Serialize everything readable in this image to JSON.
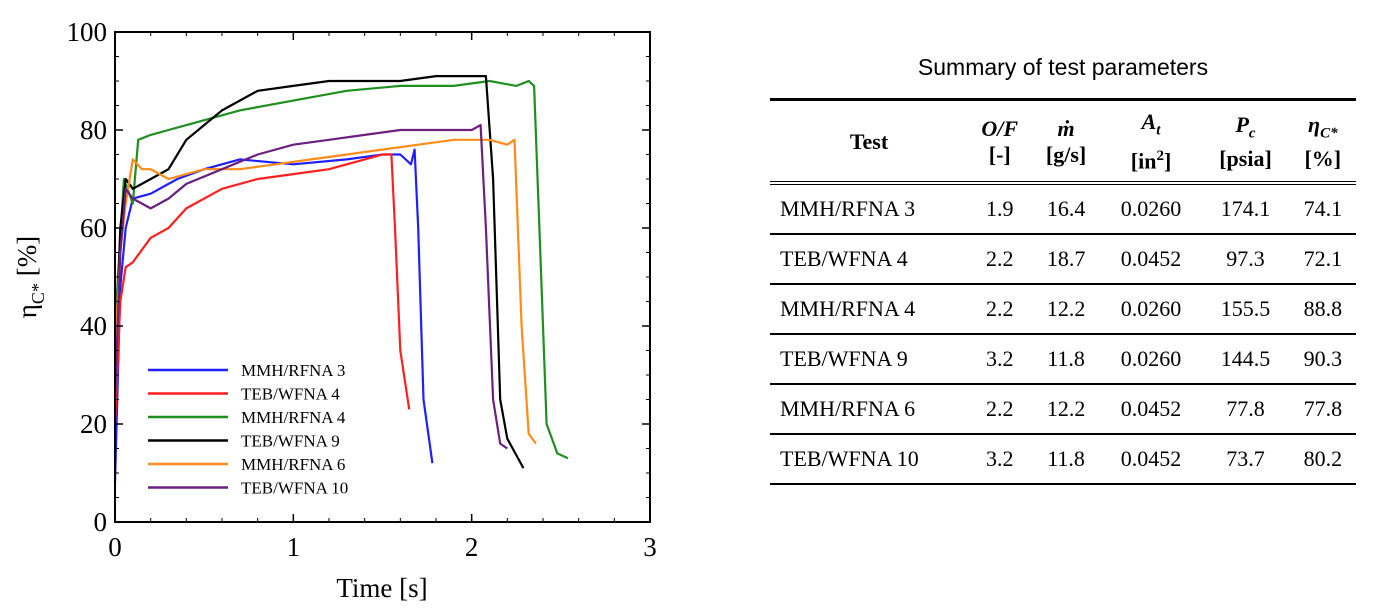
{
  "chart_data": {
    "type": "line",
    "xlabel": "Time [s]",
    "ylabel": "η",
    "ylabel_sub": "C*",
    "ylabel_unit": " [%]",
    "xlim": [
      0,
      3
    ],
    "ylim": [
      0,
      100
    ],
    "xticks": [
      0,
      1,
      2,
      3
    ],
    "yticks": [
      0,
      20,
      40,
      60,
      80,
      100
    ],
    "legend_position": "bottom-left",
    "series": [
      {
        "name": "MMH/RFNA 3",
        "color": "#1f1fff",
        "x": [
          0.0,
          0.03,
          0.06,
          0.1,
          0.2,
          0.35,
          0.5,
          0.7,
          1.0,
          1.3,
          1.5,
          1.6,
          1.66,
          1.68,
          1.7,
          1.73,
          1.78
        ],
        "y": [
          8,
          48,
          60,
          66,
          67,
          70,
          72,
          74,
          73,
          74,
          75,
          75,
          73,
          76,
          60,
          25,
          12
        ]
      },
      {
        "name": "TEB/WFNA 4",
        "color": "#ff1f1f",
        "x": [
          0.0,
          0.03,
          0.06,
          0.1,
          0.2,
          0.3,
          0.4,
          0.6,
          0.8,
          1.0,
          1.2,
          1.4,
          1.5,
          1.55,
          1.57,
          1.6,
          1.65
        ],
        "y": [
          20,
          45,
          52,
          53,
          58,
          60,
          64,
          68,
          70,
          71,
          72,
          74,
          75,
          75,
          60,
          35,
          23
        ]
      },
      {
        "name": "MMH/RFNA 4",
        "color": "#1f8f1f",
        "x": [
          0.0,
          0.05,
          0.1,
          0.13,
          0.2,
          0.3,
          0.5,
          0.7,
          1.0,
          1.3,
          1.6,
          1.9,
          2.1,
          2.25,
          2.32,
          2.35,
          2.38,
          2.42,
          2.48,
          2.54
        ],
        "y": [
          40,
          70,
          65,
          78,
          79,
          80,
          82,
          84,
          86,
          88,
          89,
          89,
          90,
          89,
          90,
          89,
          60,
          20,
          14,
          13
        ]
      },
      {
        "name": "TEB/WFNA 9",
        "color": "#000000",
        "x": [
          0.0,
          0.03,
          0.06,
          0.1,
          0.2,
          0.3,
          0.4,
          0.6,
          0.8,
          1.0,
          1.2,
          1.4,
          1.6,
          1.8,
          2.0,
          2.08,
          2.12,
          2.16,
          2.2,
          2.29
        ],
        "y": [
          30,
          60,
          70,
          68,
          70,
          72,
          78,
          84,
          88,
          89,
          90,
          90,
          90,
          91,
          91,
          91,
          70,
          25,
          17,
          11
        ]
      },
      {
        "name": "MMH/RFNA 6",
        "color": "#ff8c1a",
        "x": [
          0.0,
          0.03,
          0.06,
          0.1,
          0.15,
          0.2,
          0.3,
          0.5,
          0.7,
          0.9,
          1.1,
          1.3,
          1.5,
          1.7,
          1.9,
          2.1,
          2.2,
          2.24,
          2.28,
          2.32,
          2.36
        ],
        "y": [
          35,
          55,
          65,
          74,
          72,
          72,
          70,
          72,
          72,
          73,
          74,
          75,
          76,
          77,
          78,
          78,
          77,
          78,
          40,
          18,
          16
        ]
      },
      {
        "name": "TEB/WFNA 10",
        "color": "#6b1f7f",
        "x": [
          0.0,
          0.03,
          0.06,
          0.1,
          0.2,
          0.3,
          0.4,
          0.6,
          0.8,
          1.0,
          1.2,
          1.4,
          1.6,
          1.8,
          2.0,
          2.05,
          2.08,
          2.12,
          2.16,
          2.2
        ],
        "y": [
          25,
          55,
          68,
          66,
          64,
          66,
          69,
          72,
          75,
          77,
          78,
          79,
          80,
          80,
          80,
          81,
          60,
          25,
          16,
          15
        ]
      }
    ]
  },
  "table": {
    "title": "Summary of test parameters",
    "headers": {
      "test": "Test",
      "of_main": "O/F",
      "of_unit": "[-]",
      "mdot_main": "ṁ",
      "mdot_unit": "[g/s]",
      "at_main": "A",
      "at_sub": "t",
      "at_unit_pre": "[in",
      "at_unit_sup": "2",
      "at_unit_post": "]",
      "pc_main": "P",
      "pc_sub": "c",
      "pc_unit": "[psia]",
      "eta_main": "η",
      "eta_sub": "C*",
      "eta_unit": "[%]"
    },
    "rows": [
      {
        "test": "MMH/RFNA 3",
        "of": "1.9",
        "mdot": "16.4",
        "at": "0.0260",
        "pc": "174.1",
        "eta": "74.1"
      },
      {
        "test": "TEB/WFNA 4",
        "of": "2.2",
        "mdot": "18.7",
        "at": "0.0452",
        "pc": "97.3",
        "eta": "72.1"
      },
      {
        "test": "MMH/RFNA 4",
        "of": "2.2",
        "mdot": "12.2",
        "at": "0.0260",
        "pc": "155.5",
        "eta": "88.8"
      },
      {
        "test": "TEB/WFNA 9",
        "of": "3.2",
        "mdot": "11.8",
        "at": "0.0260",
        "pc": "144.5",
        "eta": "90.3"
      },
      {
        "test": "MMH/RFNA 6",
        "of": "2.2",
        "mdot": "12.2",
        "at": "0.0452",
        "pc": "77.8",
        "eta": "77.8"
      },
      {
        "test": "TEB/WFNA 10",
        "of": "3.2",
        "mdot": "11.8",
        "at": "0.0452",
        "pc": "73.7",
        "eta": "80.2"
      }
    ]
  }
}
